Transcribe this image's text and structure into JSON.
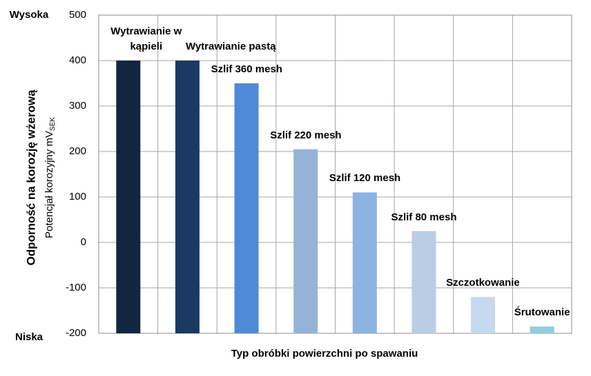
{
  "chart_data": {
    "type": "bar",
    "ylabel": "Odporność na korozję wżerową",
    "ylabel2": "Potencjał korozyjny mV",
    "ylabel2_sub": "SEK",
    "high_label": "Wysoka",
    "low_label": "Niska",
    "xlabel": "Typ obróbki powierzchni po spawaniu",
    "categories": [
      "Wytrawianie w kąpieli",
      "Wytrawianie pastą",
      "Szlif 360 mesh",
      "Szlif 220 mesh",
      "Szlif 120 mesh",
      "Szlif 80 mesh",
      "Szczotkowanie",
      "Śrutowanie"
    ],
    "values": [
      400,
      400,
      350,
      205,
      110,
      25,
      -120,
      -185
    ],
    "colors": [
      "#13263f",
      "#1b3a63",
      "#4f8ad6",
      "#95b3d7",
      "#8db3e2",
      "#b9cde5",
      "#c6d9f1",
      "#93cddd"
    ],
    "ylim": [
      -200,
      500
    ],
    "yticks": [
      -200,
      -100,
      0,
      100,
      200,
      300,
      400,
      500
    ],
    "grid": true
  }
}
